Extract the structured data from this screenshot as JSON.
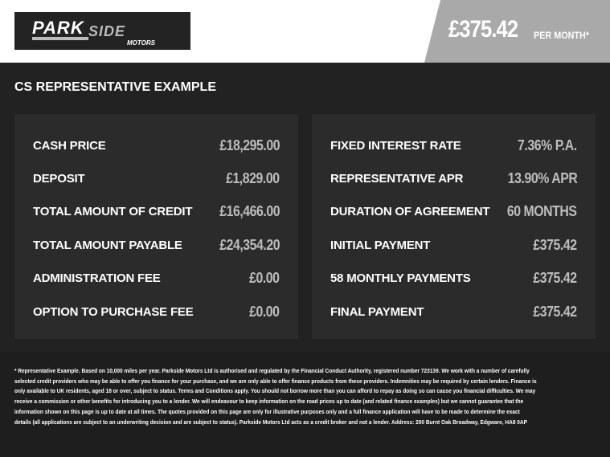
{
  "header": {
    "logo_text": "PARKSIDE MOTORS",
    "price": "£375.42",
    "per_month": "PER MONTH*"
  },
  "title": "CS REPRESENTATIVE EXAMPLE",
  "left": [
    {
      "label": "CASH PRICE",
      "value": "£18,295.00"
    },
    {
      "label": "DEPOSIT",
      "value": "£1,829.00"
    },
    {
      "label": "TOTAL AMOUNT OF CREDIT",
      "value": "£16,466.00"
    },
    {
      "label": "TOTAL AMOUNT PAYABLE",
      "value": "£24,354.20"
    },
    {
      "label": "ADMINISTRATION FEE",
      "value": "£0.00"
    },
    {
      "label": "OPTION TO PURCHASE FEE",
      "value": "£0.00"
    }
  ],
  "right": [
    {
      "label": "FIXED INTEREST RATE",
      "value": "7.36% P.A."
    },
    {
      "label": "REPRESENTATIVE APR",
      "value": "13.90% APR"
    },
    {
      "label": "DURATION OF AGREEMENT",
      "value": "60 MONTHS"
    },
    {
      "label": "INITIAL PAYMENT",
      "value": "£375.42"
    },
    {
      "label": "58 MONTHLY PAYMENTS",
      "value": "£375.42"
    },
    {
      "label": "FINAL PAYMENT",
      "value": "£375.42"
    }
  ],
  "footnote": [
    "* Representative Example. Based on 10,000 miles per year. Parkside Motors Ltd is authorised and regulated by the Financial Conduct Authority, registered number 723139. We work with a number of carefully",
    "selected credit providers who may be able to offer you finance for your purchase, and we are only able to offer finance products from these providers. Indemnities may be required by certain lenders. Finance is",
    "only available to UK residents, aged 18 or over, subject to status. Terms and Conditions apply. You should not borrow more than you can afford to repay as doing so can cause you financial difficulties. We may",
    "receive a commission or other benefits for introducing you to a lender. We will endeavour to keep information on the road prices up to date (and related finance examples) but we cannot guarantee that the",
    "information shown on this page is up to date at all times. The quotes provided on this page are only for illustrative purposes only and a full finance application will have to be made to determine the exact",
    "details (all applications are subject to an underwriting decision and are subject to status). Parkside Motors Ltd acts as a credit broker and not a lender. Address:  200 Burnt Oak Broadway, Edgware, HA8 0AP"
  ]
}
